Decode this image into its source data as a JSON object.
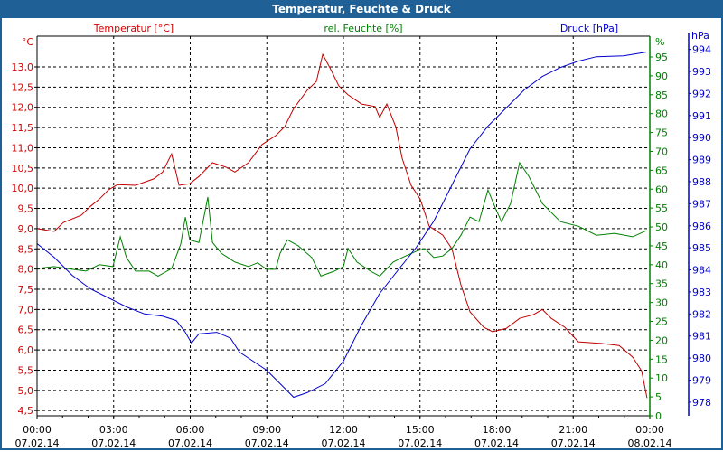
{
  "window": {
    "title": "Temperatur, Feuchte & Druck"
  },
  "chart_data": {
    "type": "line",
    "title": "Temperatur, Feuchte & Druck",
    "xlabel": "",
    "x_unit": "hours since 07.02.14 00:00",
    "xlim": [
      0,
      24
    ],
    "x_ticks": [
      {
        "time": "00:00",
        "date": "07.02.14"
      },
      {
        "time": "03:00",
        "date": "07.02.14"
      },
      {
        "time": "06:00",
        "date": "07.02.14"
      },
      {
        "time": "09:00",
        "date": "07.02.14"
      },
      {
        "time": "12:00",
        "date": "07.02.14"
      },
      {
        "time": "15:00",
        "date": "07.02.14"
      },
      {
        "time": "18:00",
        "date": "07.02.14"
      },
      {
        "time": "21:00",
        "date": "07.02.14"
      },
      {
        "time": "00:00",
        "date": "08.02.14"
      }
    ],
    "grid": true,
    "axes": {
      "temp": {
        "label": "Temperatur [°C]",
        "unit": "°C",
        "color": "#d40000",
        "ylim": [
          4.37,
          13.76
        ],
        "ticks": [
          "4,5",
          "5,0",
          "5,5",
          "6,0",
          "6,5",
          "7,0",
          "7,5",
          "8,0",
          "8,5",
          "9,0",
          "9,5",
          "10,0",
          "10,5",
          "11,0",
          "11,5",
          "12,0",
          "12,5",
          "13,0"
        ]
      },
      "hum": {
        "label": "rel. Feuchte [%]",
        "unit": "%",
        "color": "#008000",
        "ylim": [
          0,
          100.5
        ],
        "ticks": [
          "0",
          "5",
          "10",
          "15",
          "20",
          "25",
          "30",
          "35",
          "40",
          "45",
          "50",
          "55",
          "60",
          "65",
          "70",
          "75",
          "80",
          "85",
          "90",
          "95"
        ]
      },
      "press": {
        "label": "Druck [hPa]",
        "unit": "hPa",
        "color": "#0000d0",
        "ylim": [
          977.38,
          994.6
        ],
        "ticks": [
          "978",
          "979",
          "980",
          "981",
          "982",
          "983",
          "984",
          "985",
          "986",
          "987",
          "988",
          "989",
          "990",
          "991",
          "992",
          "993",
          "994"
        ]
      }
    },
    "series": [
      {
        "name": "Temperatur",
        "axis": "temp",
        "color": "#c00000",
        "x": [
          0,
          0.67,
          1.03,
          1.73,
          2.09,
          2.44,
          2.8,
          3.15,
          3.86,
          4.57,
          4.92,
          5.27,
          5.56,
          5.98,
          6.34,
          6.87,
          7.4,
          7.75,
          8.28,
          8.81,
          9.35,
          9.7,
          10.05,
          10.58,
          10.94,
          11.19,
          11.47,
          11.82,
          12.18,
          12.71,
          13.24,
          13.42,
          13.7,
          14.05,
          14.3,
          14.65,
          15.01,
          15.36,
          15.89,
          16.25,
          16.6,
          16.96,
          17.49,
          17.84,
          18.37,
          18.9,
          19.43,
          19.79,
          20.14,
          20.67,
          21.2,
          22.09,
          22.8,
          23.33,
          23.68,
          23.89
        ],
        "values": [
          9.0,
          8.93,
          9.15,
          9.33,
          9.55,
          9.73,
          9.96,
          10.09,
          10.07,
          10.23,
          10.4,
          10.85,
          10.07,
          10.11,
          10.29,
          10.63,
          10.52,
          10.4,
          10.63,
          11.08,
          11.3,
          11.52,
          11.97,
          12.42,
          12.64,
          13.31,
          12.98,
          12.53,
          12.31,
          12.08,
          12.02,
          11.75,
          12.08,
          11.52,
          10.74,
          10.07,
          9.73,
          9.06,
          8.84,
          8.5,
          7.61,
          6.94,
          6.56,
          6.45,
          6.53,
          6.78,
          6.87,
          7.0,
          6.78,
          6.56,
          6.2,
          6.16,
          6.11,
          5.82,
          5.48,
          4.81
        ]
      },
      {
        "name": "rel. Feuchte",
        "axis": "hum",
        "color": "#008000",
        "x": [
          0,
          0.67,
          1.38,
          1.91,
          2.44,
          2.97,
          3.26,
          3.5,
          3.86,
          4.39,
          4.74,
          5.27,
          5.63,
          5.81,
          5.98,
          6.34,
          6.69,
          6.87,
          7.22,
          7.75,
          8.28,
          8.64,
          8.99,
          9.35,
          9.52,
          9.81,
          10.23,
          10.76,
          11.12,
          11.65,
          12.0,
          12.18,
          12.53,
          13.06,
          13.42,
          13.95,
          14.3,
          14.83,
          15.19,
          15.54,
          15.89,
          16.25,
          16.6,
          16.96,
          17.31,
          17.66,
          17.95,
          18.19,
          18.55,
          18.9,
          19.26,
          19.79,
          20.5,
          21.2,
          21.91,
          22.62,
          23.33,
          23.86
        ],
        "values": [
          39,
          39.5,
          38.8,
          38.3,
          40,
          39.5,
          47.4,
          41.9,
          38.3,
          38.3,
          37,
          39,
          45.5,
          52.6,
          46.6,
          45.9,
          57.9,
          45.9,
          43,
          40.7,
          39.5,
          40.5,
          38.8,
          38.8,
          43,
          46.6,
          45,
          41.9,
          37,
          38.3,
          39.5,
          44.3,
          40.7,
          38.3,
          37,
          40.7,
          41.9,
          43.5,
          44.3,
          41.9,
          42.3,
          44.3,
          47.8,
          52.6,
          51.4,
          59.8,
          55,
          51.4,
          56.2,
          67,
          63.4,
          56.2,
          51.4,
          50.2,
          47.8,
          48.3,
          47.4,
          49
        ]
      },
      {
        "name": "Druck",
        "axis": "press",
        "color": "#0000d0",
        "x": [
          0,
          0.67,
          1.38,
          2.09,
          2.8,
          3.5,
          4.21,
          4.92,
          5.45,
          5.81,
          6.05,
          6.34,
          7.04,
          7.58,
          7.93,
          8.46,
          8.99,
          9.52,
          10.05,
          10.58,
          11.29,
          12.0,
          12.71,
          13.42,
          14.12,
          14.83,
          15.54,
          16.25,
          16.96,
          17.66,
          18.37,
          19.08,
          19.79,
          20.5,
          21.2,
          21.91,
          22.97,
          23.86
        ],
        "values": [
          985.19,
          984.57,
          983.75,
          983.14,
          982.73,
          982.32,
          982.0,
          981.9,
          981.7,
          981.17,
          980.68,
          981.1,
          981.17,
          980.9,
          980.27,
          979.86,
          979.45,
          978.84,
          978.22,
          978.43,
          978.84,
          979.86,
          981.5,
          982.93,
          983.96,
          984.98,
          986.21,
          987.85,
          989.49,
          990.52,
          991.34,
          992.16,
          992.77,
          993.18,
          993.47,
          993.67,
          993.71,
          993.88
        ]
      }
    ]
  }
}
